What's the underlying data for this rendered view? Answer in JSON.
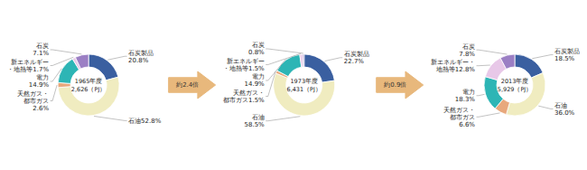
{
  "chart_data": [
    {
      "type": "donut",
      "title": "1965年度",
      "subtitle": "2,626（PJ）",
      "values": [
        20.8,
        52.8,
        2.6,
        14.9,
        1.7,
        7.1
      ],
      "value_labels": [
        "石炭製品\n20.8%",
        "石油52.8%",
        "天然ガス・\n都市ガス\n2.6%",
        "電力\n14.9%",
        "新エネルギー\n・地熱等1.7%",
        "石炭\n7.1%"
      ],
      "colors": [
        "#3a5fa0",
        "#f0ecc0",
        "#e8a87c",
        "#2db5b5",
        "#e8c8e8",
        "#9b7fc4"
      ],
      "data_labels": true
    },
    {
      "type": "donut",
      "title": "1973年度",
      "subtitle": "6,431（PJ）",
      "values": [
        22.7,
        58.5,
        1.5,
        14.9,
        1.5,
        0.8
      ],
      "value_labels": [
        "石炭製品\n22.7%",
        "石油\n58.5%",
        "天然ガス・\n都市ガス1.5%",
        "電力\n14.9%",
        "新エネルギー\n・地熱等1.5%",
        "石炭\n0.8%"
      ],
      "colors": [
        "#3a5fa0",
        "#f0ecc0",
        "#e8a87c",
        "#2db5b5",
        "#e8c8e8",
        "#9b7fc4"
      ],
      "data_labels": true,
      "annotations": [
        {
          "text": "約2.4倍",
          "color": "#e8b87c"
        }
      ]
    },
    {
      "type": "donut",
      "title": "2013年度",
      "subtitle": "5,929（PJ）",
      "values": [
        18.5,
        36.0,
        6.6,
        18.3,
        12.8,
        7.8
      ],
      "value_labels": [
        "石炭製品\n18.5%",
        "石油\n36.0%",
        "天然ガス・\n都市ガス\n6.6%",
        "電力\n18.3%",
        "新エネルギー・\n地熱等12.8%",
        "石炭\n7.8%"
      ],
      "colors": [
        "#3a5fa0",
        "#f0ecc0",
        "#e8a87c",
        "#2db5b5",
        "#e8c8e8",
        "#9b7fc4"
      ],
      "data_labels": true,
      "annotations": [
        {
          "text": "約0.9倍",
          "color": "#e8b87c"
        }
      ]
    }
  ]
}
